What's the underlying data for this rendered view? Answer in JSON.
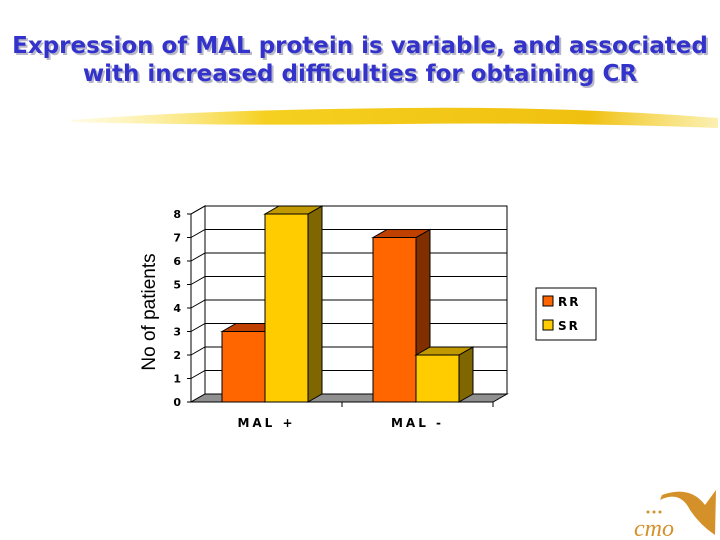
{
  "slide": {
    "title_line1": "Expression of MAL protein is variable, and associated",
    "title_line2": "with increased difficulties for obtaining CR",
    "logo_text": "cmo"
  },
  "colors": {
    "title": "#3333cc",
    "rr": "#ff6600",
    "sr": "#ffcc00",
    "floor": "#909090",
    "logo": "#d4912a"
  },
  "chart_data": {
    "type": "bar",
    "title": "",
    "xlabel": "",
    "ylabel": "No of patients",
    "categories": [
      "MAL +",
      "MAL -"
    ],
    "series": [
      {
        "name": "RR",
        "values": [
          3,
          7
        ]
      },
      {
        "name": "SR",
        "values": [
          8,
          2
        ]
      }
    ],
    "ylim": [
      0,
      8
    ],
    "yticks": [
      "0",
      "1",
      "2",
      "3",
      "4",
      "5",
      "6",
      "7",
      "8"
    ],
    "grid": true,
    "legend": "right"
  }
}
